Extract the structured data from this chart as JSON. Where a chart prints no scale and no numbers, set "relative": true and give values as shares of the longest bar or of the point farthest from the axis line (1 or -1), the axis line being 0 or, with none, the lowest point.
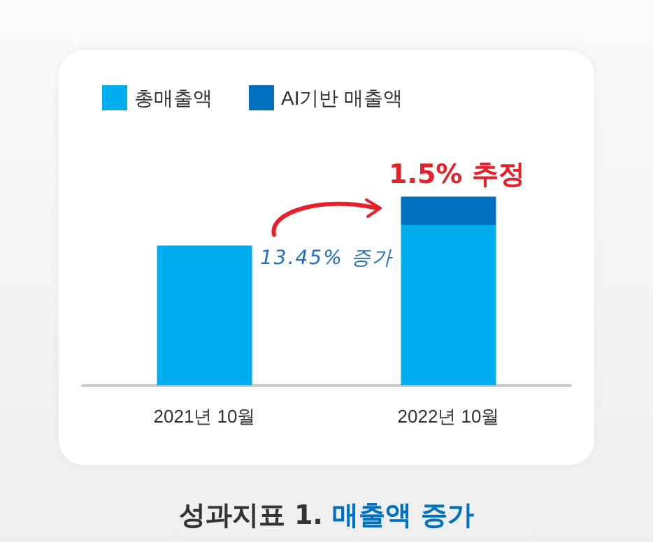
{
  "chart_data": {
    "type": "bar",
    "title": "성과지표 1. 매출액 증가",
    "categories": [
      "2021년 10월",
      "2022년 10월"
    ],
    "series": [
      {
        "name": "총매출액",
        "color": "#00aeef",
        "values": [
          0.74,
          0.85
        ]
      },
      {
        "name": "AI기반 매출액",
        "color": "#0070c0",
        "values": [
          null,
          0.15
        ]
      }
    ],
    "stacked": true,
    "relative": true,
    "legend": "top left",
    "annotations": [
      "1.5% 추정",
      "13.45% 증가"
    ]
  }
}
